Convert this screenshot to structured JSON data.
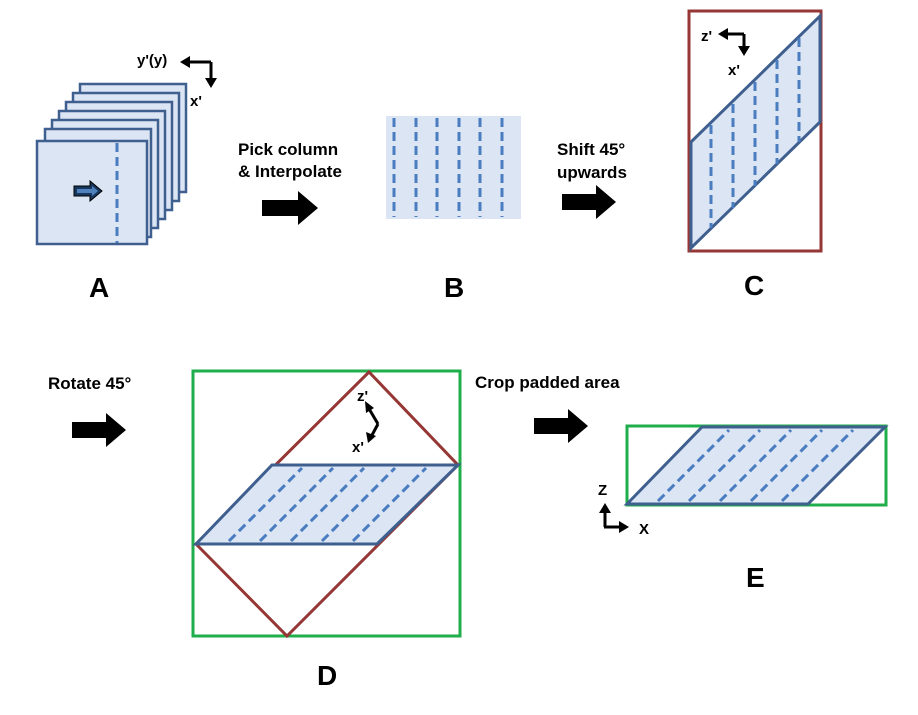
{
  "panels": {
    "a": {
      "label": "A",
      "axis_top": "y'(y)",
      "axis_side": "x'"
    },
    "b": {
      "label": "B"
    },
    "c": {
      "label": "C",
      "axis_top": "z'",
      "axis_side": "x'"
    },
    "d": {
      "label": "D",
      "axis_top": "z'",
      "axis_side": "x'"
    },
    "e": {
      "label": "E",
      "axis_up": "Z",
      "axis_right": "X"
    }
  },
  "steps": {
    "pick_line1": "Pick column",
    "pick_line2": "& Interpolate",
    "shift_line1": "Shift 45°",
    "shift_line2": "upwards",
    "rotate": "Rotate 45°",
    "crop": "Crop padded area"
  },
  "colors": {
    "slice_fill": "#dbe5f4",
    "slice_stroke": "#3f5f8f",
    "dash": "#4a7cc0",
    "pad_box": "#953735",
    "crop_box": "#1fae4b",
    "arrow": "#000000"
  }
}
